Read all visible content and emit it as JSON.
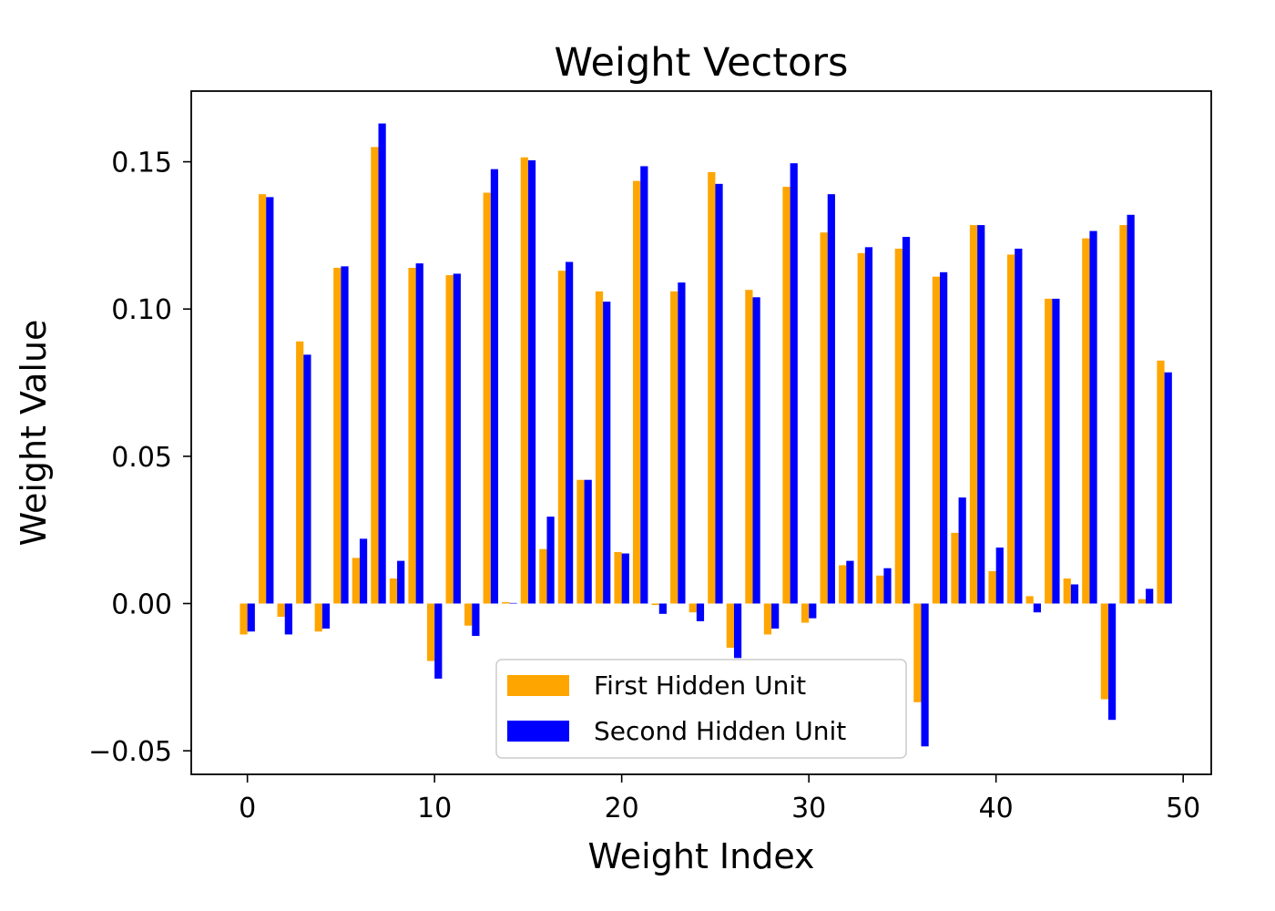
{
  "chart_data": {
    "type": "bar",
    "title": "Weight Vectors",
    "xlabel": "Weight Index",
    "ylabel": "Weight Value",
    "xlim": [
      -3,
      51.5
    ],
    "ylim": [
      -0.058,
      0.174
    ],
    "xticks": [
      0,
      10,
      20,
      30,
      40,
      50
    ],
    "xtick_labels": [
      "0",
      "10",
      "20",
      "30",
      "40",
      "50"
    ],
    "yticks": [
      -0.05,
      0.0,
      0.05,
      0.1,
      0.15
    ],
    "ytick_labels": [
      "−0.05",
      "0.00",
      "0.05",
      "0.10",
      "0.15"
    ],
    "grid": false,
    "legend_position": "lower-center",
    "x": [
      0,
      1,
      2,
      3,
      4,
      5,
      6,
      7,
      8,
      9,
      10,
      11,
      12,
      13,
      14,
      15,
      16,
      17,
      18,
      19,
      20,
      21,
      22,
      23,
      24,
      25,
      26,
      27,
      28,
      29,
      30,
      31,
      32,
      33,
      34,
      35,
      36,
      37,
      38,
      39,
      40,
      41,
      42,
      43,
      44,
      45,
      46,
      47,
      48,
      49
    ],
    "series": [
      {
        "name": "First Hidden Unit",
        "color": "#FFA500",
        "values": [
          -0.0105,
          0.139,
          -0.0045,
          0.089,
          -0.0095,
          0.114,
          0.0155,
          0.155,
          0.0085,
          0.114,
          -0.0195,
          0.1115,
          -0.0075,
          0.1395,
          0.0005,
          0.1515,
          0.0185,
          0.113,
          0.042,
          0.106,
          0.0175,
          0.1435,
          -0.0005,
          0.106,
          -0.003,
          0.1465,
          -0.015,
          0.1065,
          -0.0105,
          0.1415,
          -0.0065,
          0.126,
          0.013,
          0.119,
          0.0095,
          0.1205,
          -0.0335,
          0.111,
          0.024,
          0.1285,
          0.011,
          0.1185,
          0.0025,
          0.1035,
          0.0085,
          0.124,
          -0.0325,
          0.1285,
          0.0015,
          0.0825
        ]
      },
      {
        "name": "Second Hidden Unit",
        "color": "#0000FF",
        "values": [
          -0.0095,
          0.138,
          -0.0105,
          0.0845,
          -0.0085,
          0.1145,
          0.022,
          0.163,
          0.0145,
          0.1155,
          -0.0255,
          0.112,
          -0.011,
          0.1475,
          0.0002,
          0.1505,
          0.0295,
          0.116,
          0.042,
          0.1025,
          0.017,
          0.1485,
          -0.0035,
          0.109,
          -0.006,
          0.1425,
          -0.0185,
          0.104,
          -0.0085,
          0.1495,
          -0.005,
          0.139,
          0.0145,
          0.121,
          0.012,
          0.1245,
          -0.0485,
          0.1125,
          0.036,
          0.1285,
          0.019,
          0.1205,
          -0.003,
          0.1035,
          0.0065,
          0.1265,
          -0.0395,
          0.132,
          0.005,
          0.0785
        ]
      }
    ]
  }
}
